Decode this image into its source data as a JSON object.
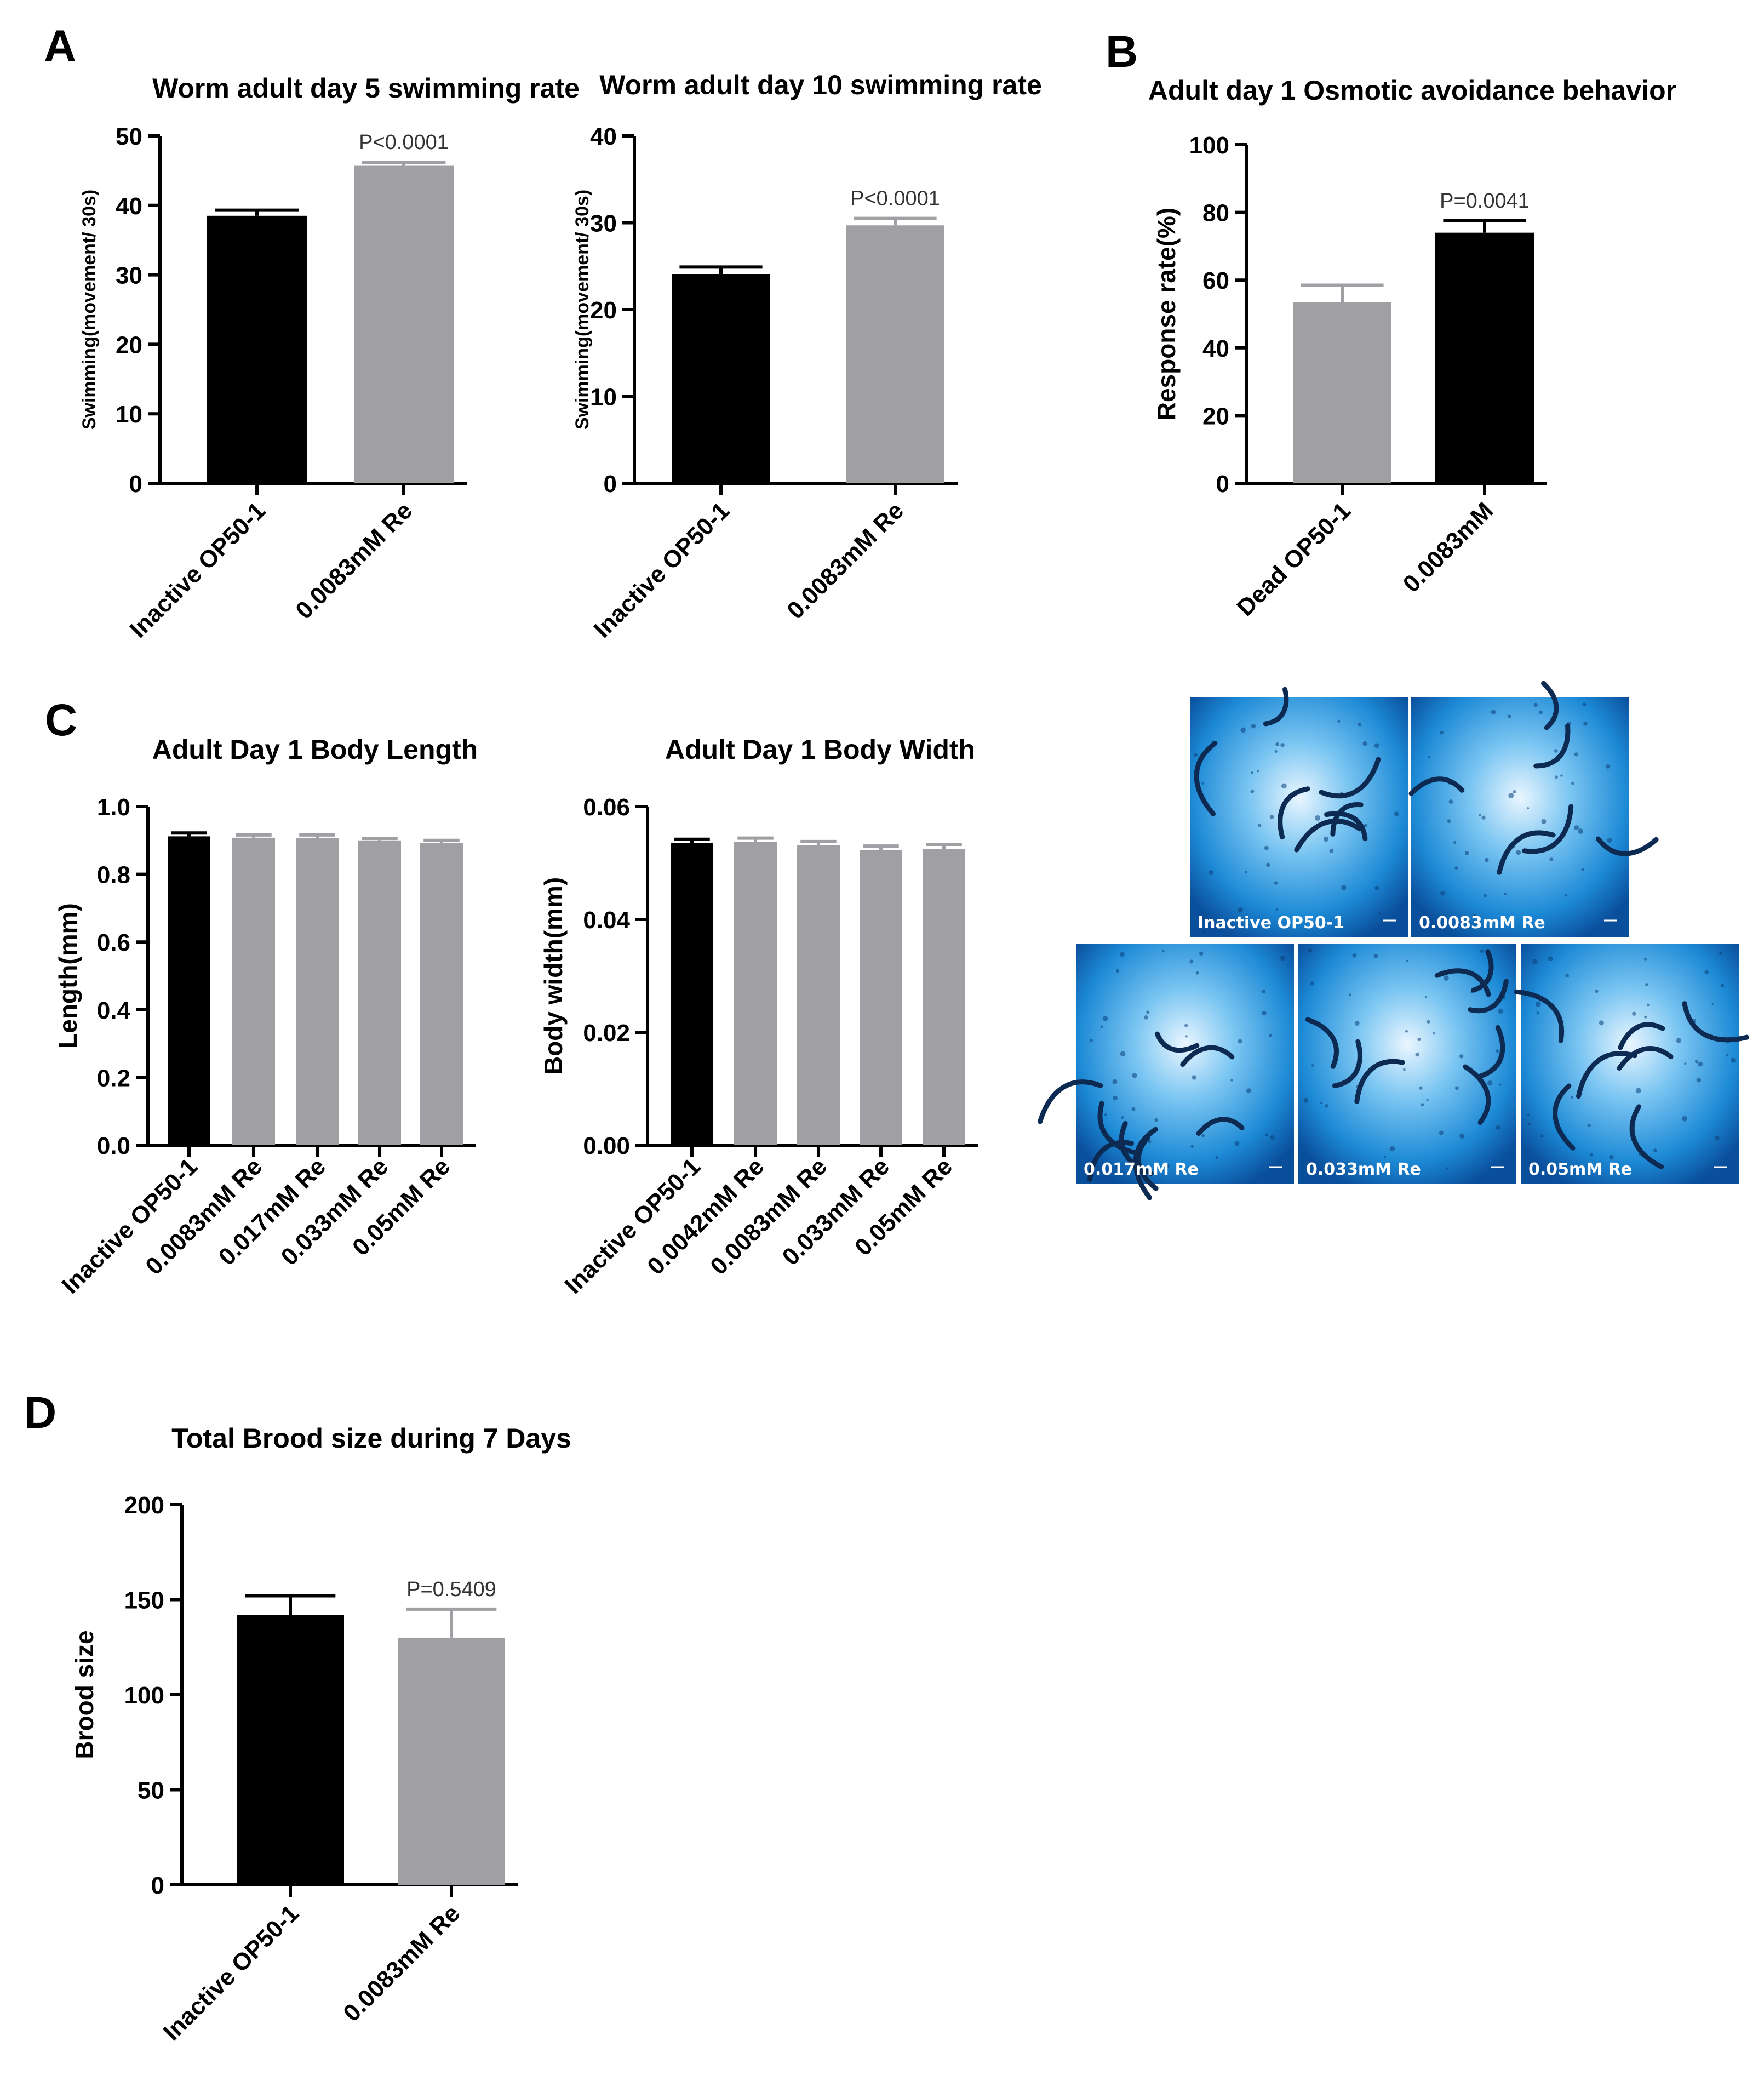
{
  "panels": {
    "A": "A",
    "B": "B",
    "C": "C",
    "D": "D"
  },
  "chart_data": [
    {
      "id": "swim5",
      "type": "bar",
      "title": "Worm adult day 5 swimming rate",
      "ylabel": "Swimming(movement/ 30s)",
      "ylim": [
        0,
        50
      ],
      "yticks": [
        0,
        10,
        20,
        30,
        40,
        50
      ],
      "categories": [
        "Inactive OP50-1",
        "0.0083mM Re"
      ],
      "values": [
        38.5,
        45.7
      ],
      "errors": [
        0.8,
        0.5
      ],
      "colors": [
        "#000000",
        "#a0a0a4"
      ],
      "annotation": "P<0.0001"
    },
    {
      "id": "swim10",
      "type": "bar",
      "title": "Worm adult day 10 swimming rate",
      "ylabel": "Swimming(movement/ 30s)",
      "ylim": [
        0,
        40
      ],
      "yticks": [
        0,
        10,
        20,
        30,
        40
      ],
      "categories": [
        "Inactive OP50-1",
        "0.0083mM Re"
      ],
      "values": [
        24.1,
        29.7
      ],
      "errors": [
        0.8,
        0.8
      ],
      "colors": [
        "#000000",
        "#a0a0a4"
      ],
      "annotation": "P<0.0001"
    },
    {
      "id": "osmotic",
      "type": "bar",
      "title": "Adult day 1 Osmotic avoidance behavior",
      "ylabel": "Response rate(%)",
      "ylim": [
        0,
        100
      ],
      "yticks": [
        0,
        20,
        40,
        60,
        80,
        100
      ],
      "categories": [
        "Dead OP50-1",
        "0.0083mM"
      ],
      "values": [
        53.5,
        74
      ],
      "errors": [
        5,
        3.5
      ],
      "colors": [
        "#a0a0a4",
        "#000000"
      ],
      "annotation": "P=0.0041"
    },
    {
      "id": "length",
      "type": "bar",
      "title": "Adult Day 1 Body Length",
      "ylabel": "Length(mm)",
      "ylim": [
        0,
        1.0
      ],
      "yticks": [
        "0.0",
        "0.2",
        "0.4",
        "0.6",
        "0.8",
        "1.0"
      ],
      "categories": [
        "Inactive OP50-1",
        "0.0083mM Re",
        "0.017mM Re",
        "0.033mM Re",
        "0.05mM Re"
      ],
      "values": [
        0.912,
        0.908,
        0.907,
        0.9,
        0.893
      ],
      "errors": [
        0.01,
        0.008,
        0.009,
        0.006,
        0.007
      ],
      "colors": [
        "#000000",
        "#a0a0a4",
        "#a0a0a4",
        "#a0a0a4",
        "#a0a0a4"
      ],
      "annotation": ""
    },
    {
      "id": "width",
      "type": "bar",
      "title": "Adult Day 1 Body Width",
      "ylabel": "Body width(mm)",
      "ylim": [
        0,
        0.06
      ],
      "yticks": [
        "0.00",
        "0.02",
        "0.04",
        "0.06"
      ],
      "categories": [
        "Inactive OP50-1",
        "0.0042mM Re",
        "0.0083mM Re",
        "0.033mM Re",
        "0.05mM Re"
      ],
      "values": [
        0.0535,
        0.0537,
        0.0532,
        0.0523,
        0.0525
      ],
      "errors": [
        0.0007,
        0.0007,
        0.0006,
        0.0007,
        0.0008
      ],
      "colors": [
        "#000000",
        "#a0a0a4",
        "#a0a0a4",
        "#a0a0a4",
        "#a0a0a4"
      ],
      "annotation": ""
    },
    {
      "id": "brood",
      "type": "bar",
      "title": "Total Brood size during 7 Days",
      "ylabel": "Brood size",
      "ylim": [
        0,
        200
      ],
      "yticks": [
        0,
        50,
        100,
        150,
        200
      ],
      "categories": [
        "Inactive OP50-1",
        "0.0083mM Re"
      ],
      "values": [
        142,
        130
      ],
      "errors": [
        10,
        15
      ],
      "colors": [
        "#000000",
        "#a0a0a4"
      ],
      "annotation": "P=0.5409"
    }
  ],
  "micrographs": [
    {
      "label": "Inactive OP50-1"
    },
    {
      "label": "0.0083mM Re"
    },
    {
      "label": "0.017mM Re"
    },
    {
      "label": "0.033mM Re"
    },
    {
      "label": "0.05mM Re"
    }
  ]
}
